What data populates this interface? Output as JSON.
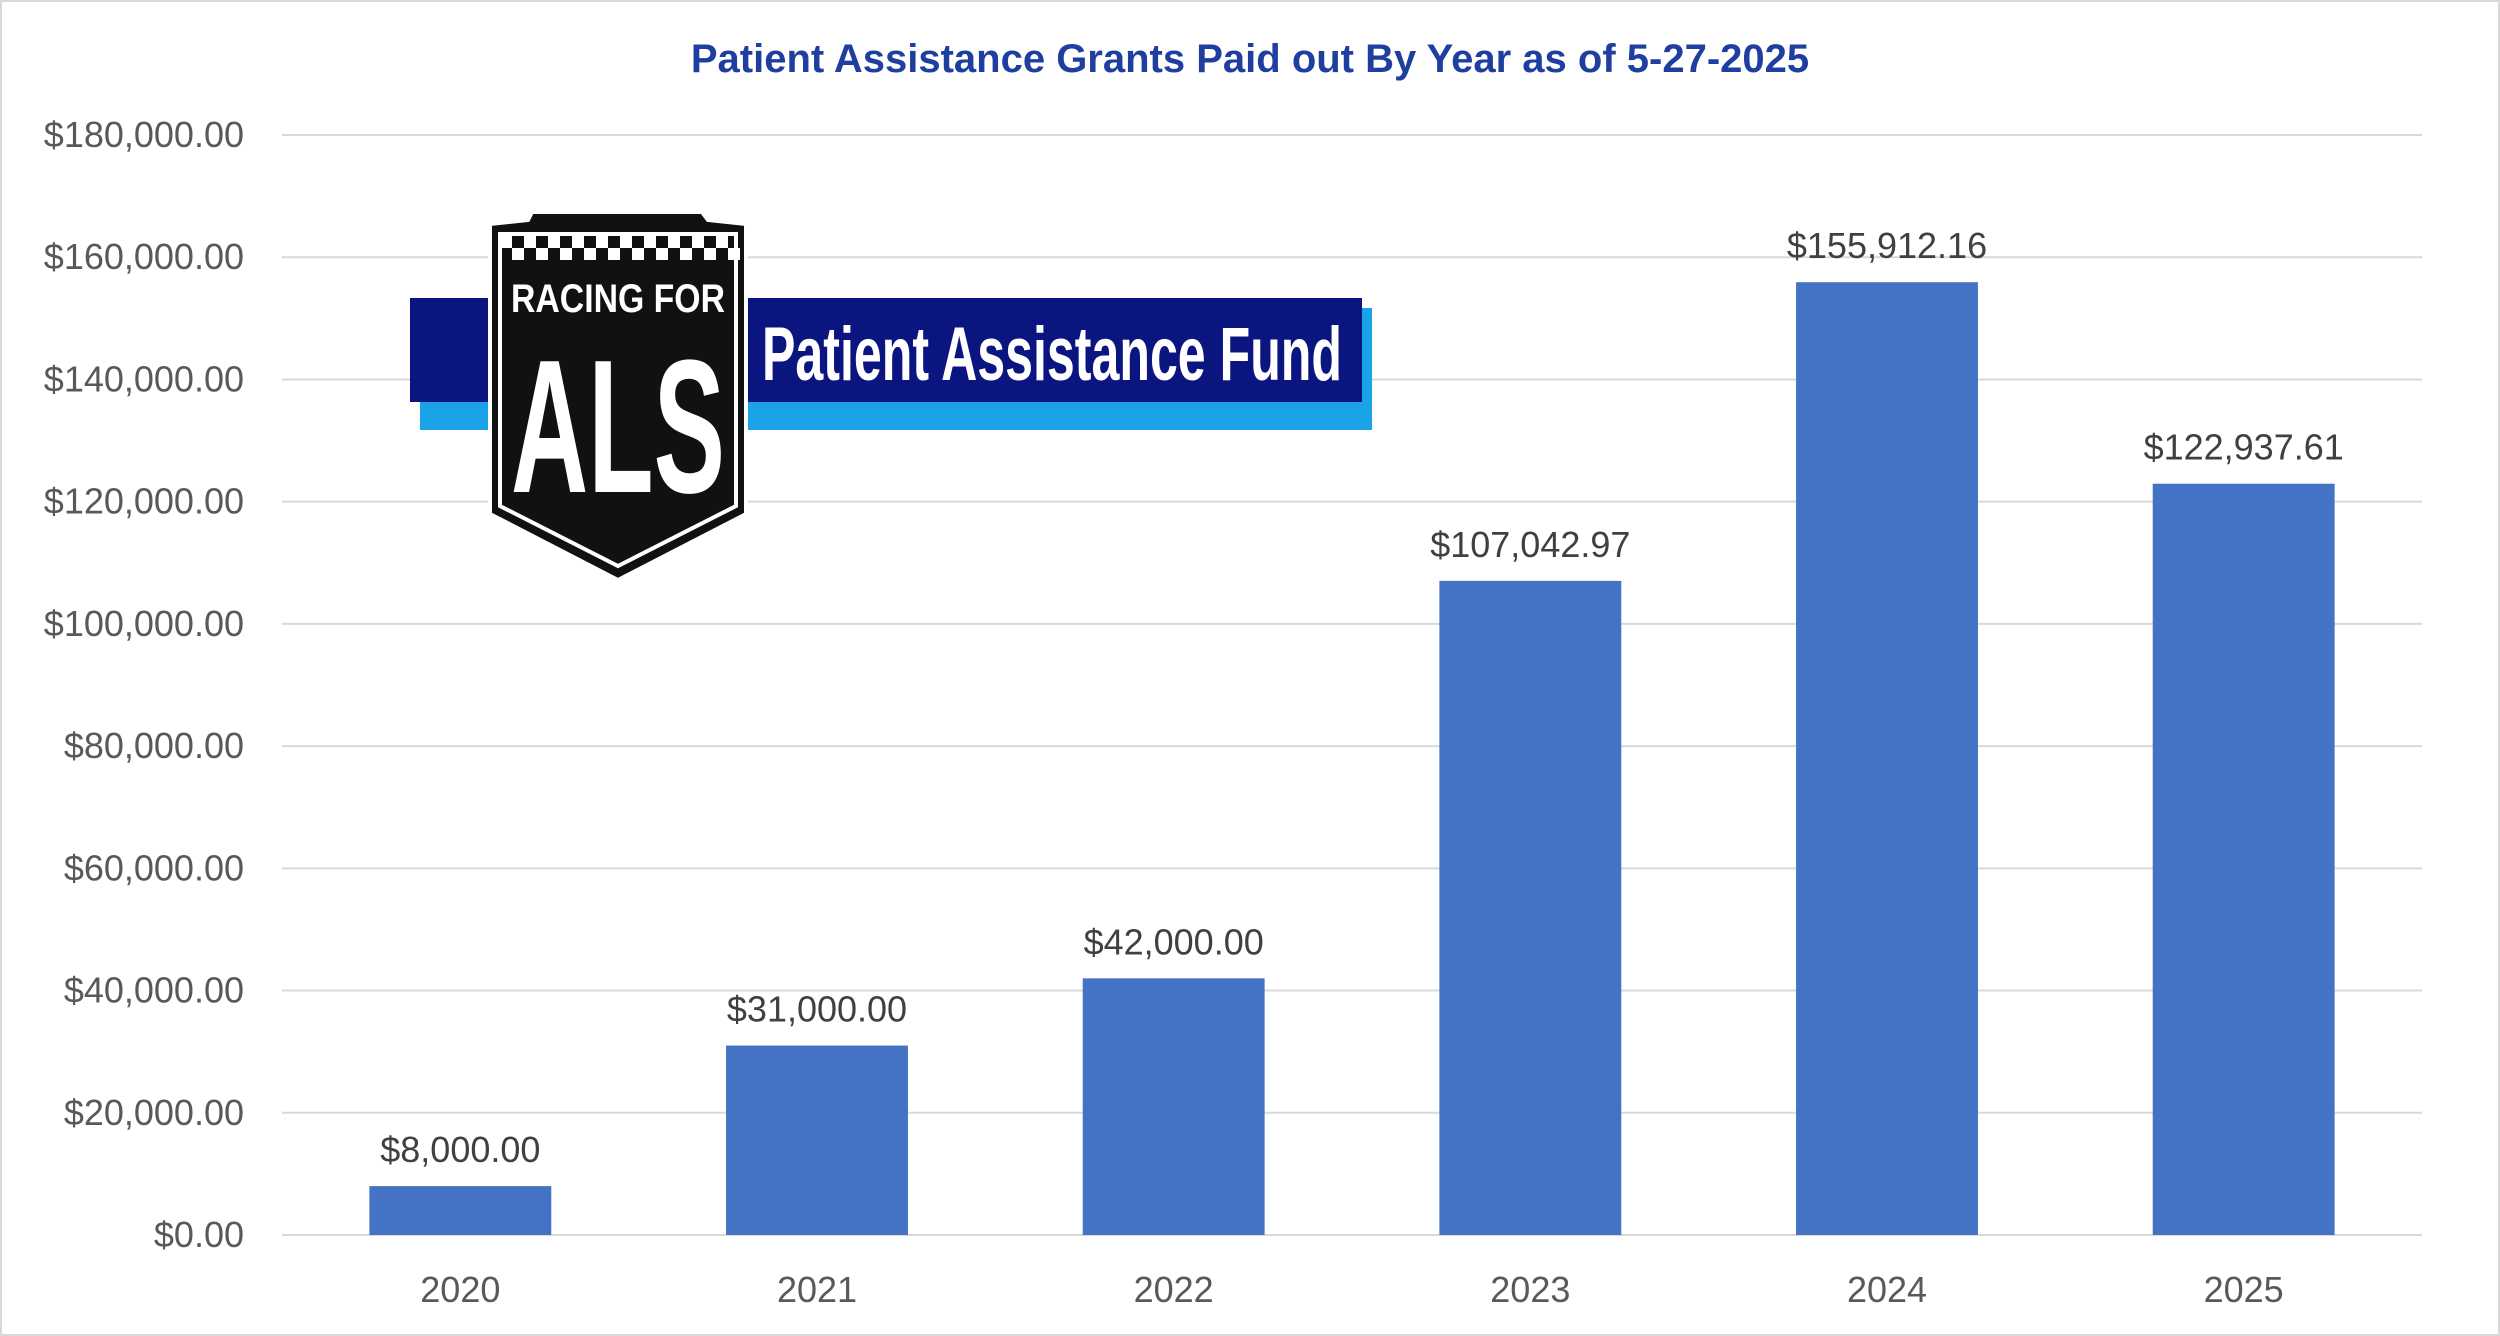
{
  "chart_data": {
    "type": "bar",
    "title": "Patient Assistance Grants Paid out By Year as of 5-27-2025",
    "xlabel": "",
    "ylabel": "",
    "categories": [
      "2020",
      "2021",
      "2022",
      "2023",
      "2024",
      "2025"
    ],
    "values": [
      8000.0,
      31000.0,
      42000.0,
      107042.97,
      155912.16,
      122937.61
    ],
    "data_labels": [
      "$8,000.00",
      "$31,000.00",
      "$42,000.00",
      "$107,042.97",
      "$155,912.16",
      "$122,937.61"
    ],
    "ylim": [
      0,
      180000
    ],
    "y_ticks": [
      0,
      20000,
      40000,
      60000,
      80000,
      100000,
      120000,
      140000,
      160000,
      180000
    ],
    "y_tick_labels": [
      "$0.00",
      "$20,000.00",
      "$40,000.00",
      "$60,000.00",
      "$80,000.00",
      "$100,000.00",
      "$120,000.00",
      "$140,000.00",
      "$160,000.00",
      "$180,000.00"
    ],
    "grid": true,
    "legend": "none"
  },
  "logo": {
    "line1": "RACING FOR",
    "line2": "ALS",
    "banner": "Patient Assistance Fund"
  },
  "colors": {
    "bar": "#4472c4",
    "title": "#1f3fa0",
    "grid": "#d9d9d9",
    "banner_dark": "#0b1580",
    "banner_light": "#1aa3e8",
    "shield": "#111111"
  }
}
